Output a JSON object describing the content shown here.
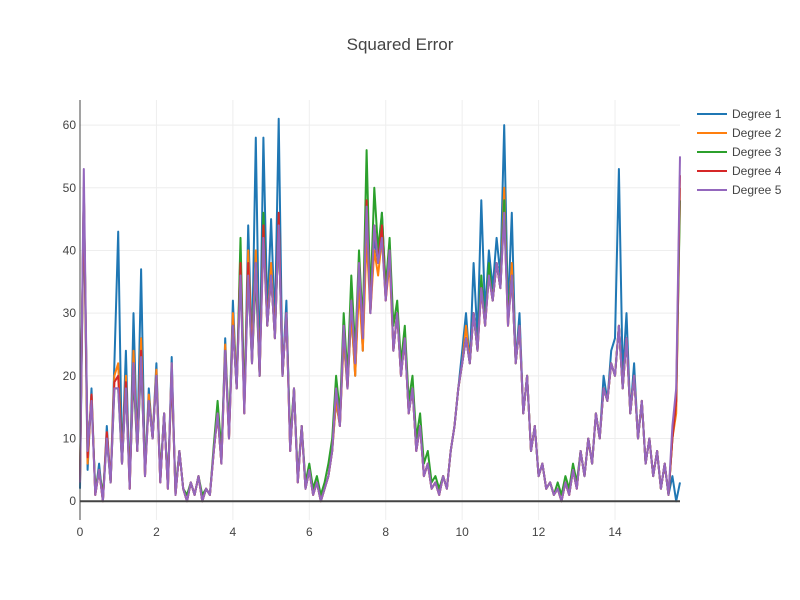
{
  "chart_data": {
    "type": "line",
    "title": "Squared Error",
    "xlabel": "",
    "ylabel": "",
    "xlim": [
      0,
      15.7
    ],
    "ylim": [
      -3,
      64
    ],
    "x_ticks": [
      0,
      2,
      4,
      6,
      8,
      10,
      12,
      14
    ],
    "y_ticks": [
      0,
      10,
      20,
      30,
      40,
      50,
      60
    ],
    "x_tick_labels": [
      "0",
      "2",
      "4",
      "6",
      "8",
      "10",
      "12",
      "14"
    ],
    "y_tick_labels": [
      "0",
      "10",
      "20",
      "30",
      "40",
      "50",
      "60"
    ],
    "grid": true,
    "legend_position": "top-right",
    "x": [
      0,
      0.1,
      0.2,
      0.3,
      0.4,
      0.5,
      0.6,
      0.7,
      0.8,
      0.9,
      1.0,
      1.1,
      1.2,
      1.3,
      1.4,
      1.5,
      1.6,
      1.7,
      1.8,
      1.9,
      2.0,
      2.1,
      2.2,
      2.3,
      2.4,
      2.5,
      2.6,
      2.7,
      2.8,
      2.9,
      3.0,
      3.1,
      3.2,
      3.3,
      3.4,
      3.5,
      3.6,
      3.7,
      3.8,
      3.9,
      4.0,
      4.1,
      4.2,
      4.3,
      4.4,
      4.5,
      4.6,
      4.7,
      4.8,
      4.9,
      5.0,
      5.1,
      5.2,
      5.3,
      5.4,
      5.5,
      5.6,
      5.7,
      5.8,
      5.9,
      6.0,
      6.1,
      6.2,
      6.3,
      6.4,
      6.5,
      6.6,
      6.7,
      6.8,
      6.9,
      7.0,
      7.1,
      7.2,
      7.3,
      7.4,
      7.5,
      7.6,
      7.7,
      7.8,
      7.9,
      8.0,
      8.1,
      8.2,
      8.3,
      8.4,
      8.5,
      8.6,
      8.7,
      8.8,
      8.9,
      9.0,
      9.1,
      9.2,
      9.3,
      9.4,
      9.5,
      9.6,
      9.7,
      9.8,
      9.9,
      10.0,
      10.1,
      10.2,
      10.3,
      10.4,
      10.5,
      10.6,
      10.7,
      10.8,
      10.9,
      11.0,
      11.1,
      11.2,
      11.3,
      11.4,
      11.5,
      11.6,
      11.7,
      11.8,
      11.9,
      12.0,
      12.1,
      12.2,
      12.3,
      12.4,
      12.5,
      12.6,
      12.7,
      12.8,
      12.9,
      13.0,
      13.1,
      13.2,
      13.3,
      13.4,
      13.5,
      13.6,
      13.7,
      13.8,
      13.9,
      14.0,
      14.1,
      14.2,
      14.3,
      14.4,
      14.5,
      14.6,
      14.7,
      14.8,
      14.9,
      15.0,
      15.1,
      15.2,
      15.3,
      15.4,
      15.5,
      15.6,
      15.7
    ],
    "series": [
      {
        "name": "Degree 1",
        "color": "#1f77b4",
        "values": [
          2,
          48,
          5,
          18,
          1,
          6,
          0,
          12,
          3,
          22,
          43,
          6,
          24,
          2,
          30,
          8,
          37,
          4,
          18,
          10,
          22,
          3,
          14,
          2,
          23,
          1,
          8,
          2,
          0,
          3,
          1,
          4,
          0,
          2,
          1,
          8,
          14,
          6,
          26,
          10,
          32,
          18,
          40,
          14,
          44,
          24,
          58,
          20,
          58,
          30,
          45,
          28,
          61,
          20,
          32,
          8,
          18,
          3,
          12,
          2,
          5,
          1,
          3,
          0,
          2,
          4,
          8,
          16,
          12,
          26,
          18,
          30,
          20,
          36,
          24,
          46,
          30,
          42,
          38,
          46,
          34,
          40,
          24,
          30,
          20,
          26,
          14,
          18,
          8,
          12,
          4,
          6,
          2,
          3,
          1,
          4,
          2,
          8,
          12,
          18,
          24,
          30,
          22,
          38,
          26,
          48,
          30,
          40,
          34,
          42,
          36,
          60,
          30,
          46,
          22,
          30,
          14,
          20,
          8,
          12,
          4,
          6,
          2,
          3,
          1,
          2,
          0,
          3,
          1,
          5,
          2,
          8,
          4,
          10,
          6,
          14,
          10,
          20,
          16,
          24,
          26,
          53,
          20,
          30,
          14,
          22,
          10,
          16,
          6,
          10,
          4,
          8,
          2,
          6,
          1,
          4,
          0,
          3
        ]
      },
      {
        "name": "Degree 2",
        "color": "#ff7f0e",
        "values": [
          3,
          50,
          6,
          17,
          1,
          5,
          0,
          11,
          3,
          20,
          22,
          6,
          20,
          2,
          24,
          8,
          26,
          4,
          17,
          10,
          21,
          3,
          14,
          2,
          22,
          1,
          8,
          2,
          0,
          3,
          1,
          4,
          0,
          2,
          1,
          8,
          14,
          6,
          25,
          10,
          30,
          18,
          38,
          14,
          40,
          23,
          40,
          20,
          42,
          28,
          38,
          26,
          44,
          20,
          30,
          8,
          18,
          3,
          12,
          2,
          5,
          1,
          3,
          0,
          2,
          4,
          8,
          16,
          12,
          26,
          18,
          30,
          20,
          34,
          24,
          42,
          30,
          40,
          36,
          42,
          32,
          38,
          24,
          30,
          20,
          26,
          14,
          18,
          8,
          12,
          4,
          6,
          2,
          3,
          1,
          4,
          2,
          8,
          12,
          18,
          22,
          28,
          22,
          30,
          24,
          34,
          28,
          36,
          32,
          38,
          34,
          50,
          28,
          38,
          22,
          28,
          14,
          20,
          8,
          12,
          4,
          6,
          2,
          3,
          1,
          2,
          0,
          3,
          1,
          5,
          2,
          8,
          4,
          10,
          6,
          14,
          10,
          18,
          16,
          22,
          20,
          28,
          18,
          26,
          14,
          20,
          10,
          16,
          6,
          10,
          4,
          8,
          2,
          6,
          1,
          10,
          14,
          50
        ]
      },
      {
        "name": "Degree 3",
        "color": "#2ca02c",
        "values": [
          4,
          50,
          8,
          16,
          2,
          5,
          1,
          10,
          3,
          18,
          18,
          6,
          18,
          3,
          20,
          8,
          22,
          5,
          16,
          10,
          20,
          4,
          14,
          3,
          20,
          2,
          8,
          2,
          1,
          3,
          1,
          4,
          1,
          2,
          1,
          9,
          16,
          8,
          24,
          12,
          28,
          18,
          42,
          16,
          36,
          22,
          36,
          20,
          46,
          28,
          36,
          26,
          44,
          20,
          30,
          10,
          18,
          4,
          12,
          3,
          6,
          2,
          4,
          1,
          3,
          6,
          10,
          20,
          14,
          30,
          20,
          36,
          24,
          40,
          28,
          56,
          32,
          50,
          40,
          46,
          34,
          42,
          28,
          32,
          22,
          28,
          16,
          20,
          10,
          14,
          6,
          8,
          3,
          4,
          2,
          4,
          2,
          8,
          12,
          18,
          22,
          26,
          22,
          30,
          24,
          36,
          28,
          38,
          32,
          38,
          34,
          48,
          30,
          36,
          22,
          28,
          14,
          20,
          8,
          12,
          4,
          6,
          2,
          3,
          1,
          3,
          1,
          4,
          2,
          6,
          3,
          8,
          4,
          10,
          6,
          14,
          10,
          18,
          16,
          22,
          20,
          28,
          18,
          26,
          14,
          20,
          10,
          16,
          6,
          10,
          4,
          8,
          2,
          6,
          1,
          10,
          16,
          48
        ]
      },
      {
        "name": "Degree 4",
        "color": "#d62728",
        "values": [
          3,
          50,
          7,
          17,
          1,
          5,
          0,
          11,
          3,
          19,
          20,
          6,
          19,
          2,
          22,
          8,
          24,
          4,
          16,
          10,
          20,
          3,
          14,
          2,
          21,
          1,
          8,
          2,
          0,
          3,
          1,
          4,
          0,
          2,
          1,
          8,
          14,
          6,
          24,
          10,
          28,
          18,
          38,
          14,
          38,
          22,
          38,
          20,
          44,
          28,
          36,
          26,
          46,
          20,
          30,
          8,
          18,
          3,
          12,
          2,
          5,
          1,
          3,
          0,
          2,
          4,
          8,
          18,
          12,
          28,
          18,
          32,
          22,
          38,
          26,
          48,
          30,
          44,
          38,
          44,
          32,
          40,
          24,
          30,
          20,
          26,
          14,
          18,
          8,
          12,
          4,
          6,
          2,
          3,
          1,
          4,
          2,
          8,
          12,
          18,
          22,
          26,
          22,
          30,
          24,
          34,
          28,
          36,
          32,
          38,
          34,
          46,
          28,
          36,
          22,
          28,
          14,
          20,
          8,
          12,
          4,
          6,
          2,
          3,
          1,
          2,
          0,
          3,
          1,
          5,
          2,
          8,
          4,
          10,
          6,
          14,
          10,
          18,
          16,
          22,
          20,
          28,
          18,
          26,
          14,
          20,
          10,
          16,
          6,
          10,
          4,
          8,
          2,
          6,
          1,
          10,
          16,
          52
        ]
      },
      {
        "name": "Degree 5",
        "color": "#9467bd",
        "values": [
          3,
          53,
          8,
          16,
          1,
          5,
          0,
          10,
          3,
          18,
          18,
          6,
          18,
          2,
          22,
          8,
          23,
          4,
          16,
          10,
          20,
          3,
          14,
          2,
          22,
          1,
          8,
          2,
          0,
          3,
          1,
          4,
          0,
          2,
          1,
          8,
          14,
          6,
          24,
          10,
          28,
          18,
          36,
          14,
          36,
          22,
          38,
          20,
          42,
          28,
          36,
          26,
          44,
          20,
          30,
          8,
          18,
          3,
          12,
          2,
          5,
          1,
          3,
          0,
          2,
          4,
          8,
          18,
          12,
          28,
          18,
          32,
          22,
          38,
          26,
          47,
          30,
          44,
          38,
          42,
          32,
          40,
          24,
          30,
          20,
          26,
          14,
          18,
          8,
          12,
          4,
          6,
          2,
          3,
          1,
          4,
          2,
          8,
          12,
          18,
          22,
          26,
          22,
          30,
          24,
          34,
          28,
          36,
          32,
          38,
          34,
          46,
          28,
          36,
          22,
          28,
          14,
          20,
          8,
          12,
          4,
          6,
          2,
          3,
          1,
          2,
          0,
          3,
          1,
          5,
          2,
          8,
          4,
          10,
          6,
          14,
          10,
          18,
          16,
          22,
          20,
          28,
          18,
          26,
          14,
          20,
          10,
          16,
          6,
          10,
          4,
          8,
          2,
          6,
          1,
          12,
          18,
          55
        ]
      }
    ]
  }
}
